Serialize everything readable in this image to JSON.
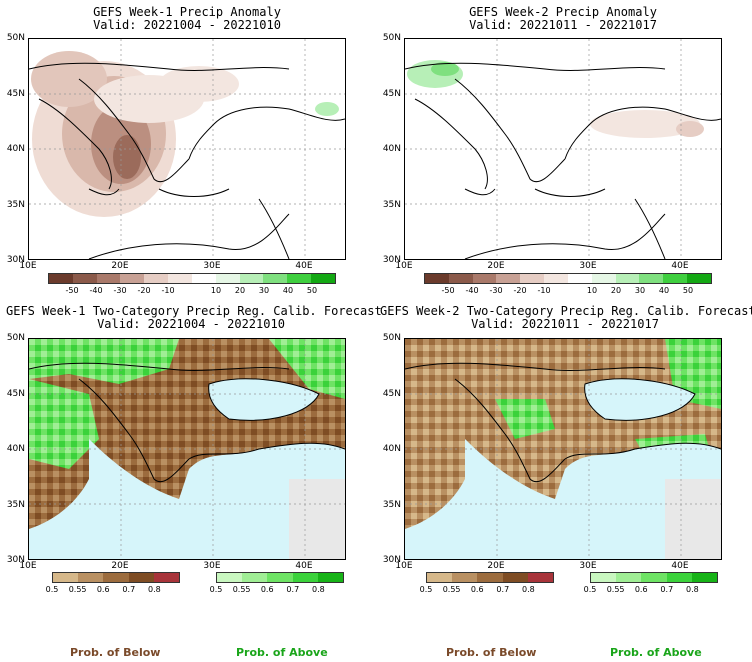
{
  "panels": [
    {
      "title": "GEFS Week-1 Precip Anomaly",
      "valid": "Valid: 20221004 - 20221010",
      "type": "anomaly"
    },
    {
      "title": "GEFS Week-2 Precip Anomaly",
      "valid": "Valid: 20221011 - 20221017",
      "type": "anomaly"
    },
    {
      "title": "GEFS Week-1 Two-Category Precip Reg. Calib. Forecast",
      "valid": "Valid: 20221004 - 20221010",
      "type": "probability"
    },
    {
      "title": "GEFS Week-2 Two-Category Precip Reg. Calib. Forecast",
      "valid": "Valid: 20221011 - 20221017",
      "type": "probability"
    }
  ],
  "axes": {
    "lat_labels": [
      "50N",
      "45N",
      "40N",
      "35N",
      "30N"
    ],
    "lon_labels": [
      "10E",
      "20E",
      "30E",
      "40E"
    ]
  },
  "anomaly_colorbar": {
    "labels": [
      "-50",
      "-40",
      "-30",
      "-20",
      "-10",
      "10",
      "20",
      "30",
      "40",
      "50"
    ],
    "colors": [
      "#6b3b2c",
      "#8b5a4a",
      "#a9796a",
      "#c8a195",
      "#e6cdc4",
      "#f3e6e0",
      "#ffffff",
      "#e6f7e6",
      "#b7efb7",
      "#7fe07f",
      "#3fcf3f",
      "#13a813"
    ]
  },
  "prob_below_colorbar": {
    "labels": [
      "0.5",
      "0.55",
      "0.6",
      "0.7",
      "0.8"
    ],
    "colors": [
      "#d6b88a",
      "#b99062",
      "#9c6c3e",
      "#7f4d24",
      "#a8343a"
    ]
  },
  "prob_above_colorbar": {
    "labels": [
      "0.5",
      "0.55",
      "0.6",
      "0.7",
      "0.8"
    ],
    "colors": [
      "#c9f7c0",
      "#a0ee95",
      "#6ee364",
      "#3bd23b",
      "#17b317"
    ]
  },
  "legend": {
    "below": "Prob. of Below",
    "above": "Prob. of Above",
    "below_color": "#7a4a2a",
    "above_color": "#1aa51a"
  }
}
